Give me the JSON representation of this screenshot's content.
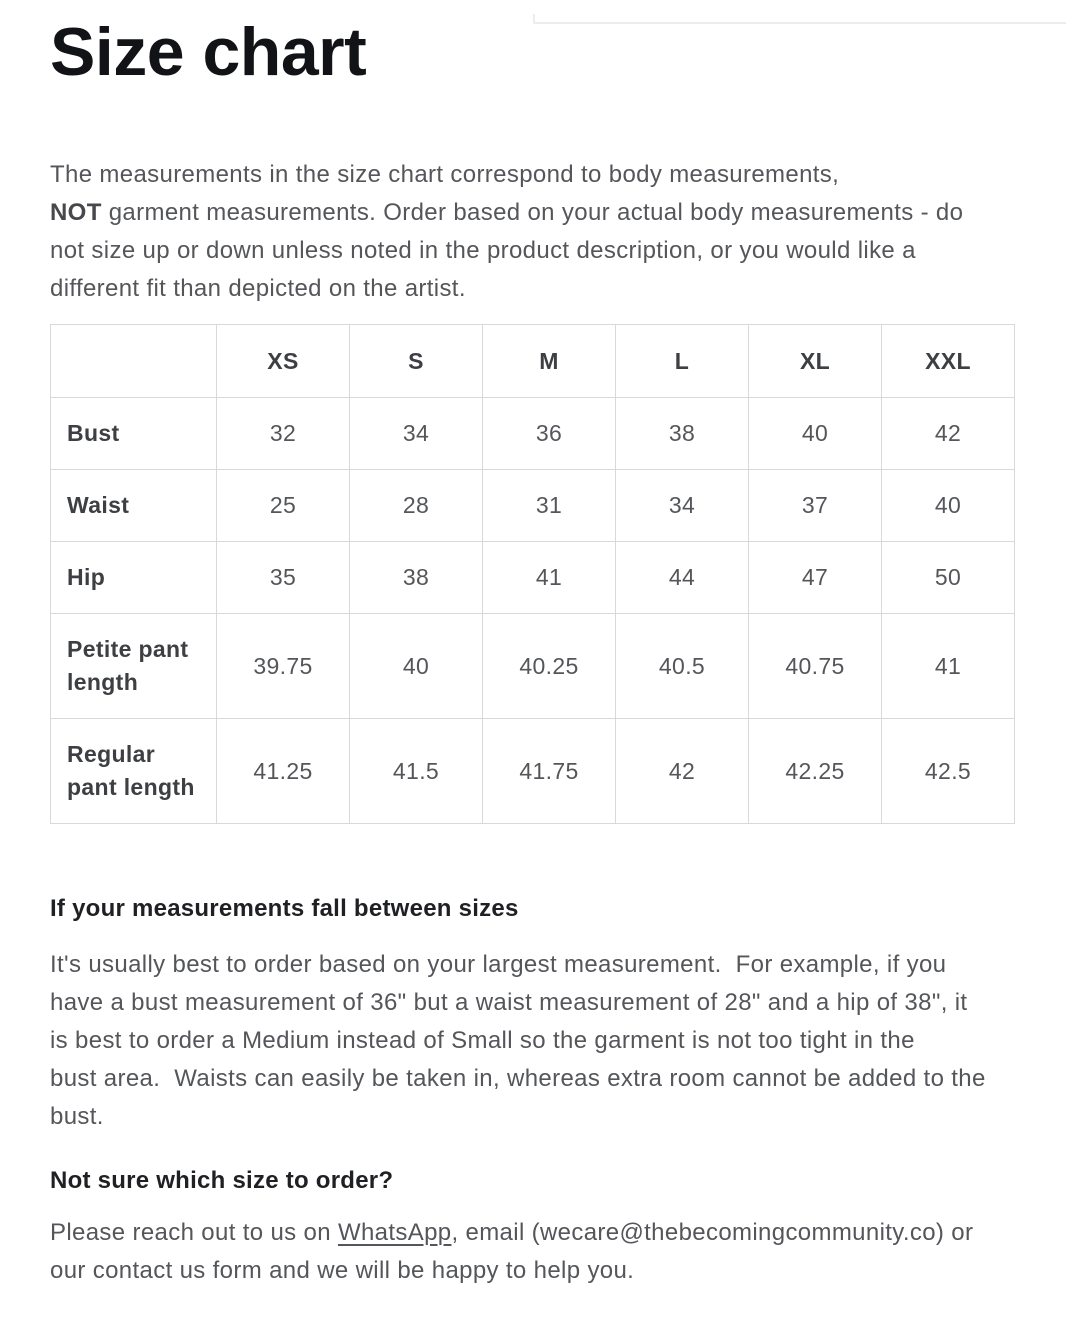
{
  "theme": {
    "title_color": "#121316",
    "body_text_color": "#54565a",
    "heading_color": "#1f2023",
    "table_border_color": "#d9d9d9",
    "background": "#ffffff"
  },
  "page": {
    "title": "Size chart"
  },
  "intro": {
    "lines": [
      [
        {
          "t": "The measurements in the size chart correspond to body measurements,"
        }
      ],
      [
        {
          "t": "NOT",
          "b": true
        },
        {
          "t": " garment measurements. Order based on your actual body measurements - do"
        }
      ],
      [
        {
          "t": "not size up or down unless noted in the product description, or you would like a"
        }
      ],
      [
        {
          "t": "different fit than depicted on the artist."
        }
      ]
    ]
  },
  "size_table": {
    "columns": [
      "",
      "XS",
      "S",
      "M",
      "L",
      "XL",
      "XXL"
    ],
    "rows": [
      {
        "label": "Bust",
        "values": [
          "32",
          "34",
          "36",
          "38",
          "40",
          "42"
        ]
      },
      {
        "label": "Waist",
        "values": [
          "25",
          "28",
          "31",
          "34",
          "37",
          "40"
        ]
      },
      {
        "label": "Hip",
        "values": [
          "35",
          "38",
          "41",
          "44",
          "47",
          "50"
        ]
      },
      {
        "label": "Petite pant length",
        "values": [
          "39.75",
          "40",
          "40.25",
          "40.5",
          "40.75",
          "41"
        ]
      },
      {
        "label": "Regular pant length",
        "values": [
          "41.25",
          "41.5",
          "41.75",
          "42",
          "42.25",
          "42.5"
        ]
      }
    ]
  },
  "between_sizes": {
    "heading": "If your measurements fall between sizes",
    "lines": [
      [
        {
          "t": "It's usually best to order based on your largest measurement.  For example, if you"
        }
      ],
      [
        {
          "t": "have a bust measurement of 36\" but a waist measurement of 28\" and a hip of 38\", it"
        }
      ],
      [
        {
          "t": "is best to order a Medium instead of Small so the garment is not too tight in the"
        }
      ],
      [
        {
          "t": "bust area.  Waists can easily be taken in, whereas extra room cannot be added to the"
        }
      ],
      [
        {
          "t": "bust."
        }
      ]
    ]
  },
  "help": {
    "heading": "Not sure which size to order?",
    "lines": [
      [
        {
          "t": "Please reach out to us on "
        },
        {
          "t": "WhatsApp",
          "link": true
        },
        {
          "t": ", email (wecare@thebecomingcommunity.co) or"
        }
      ],
      [
        {
          "t": "our contact us form and we will be happy to help you."
        }
      ]
    ]
  }
}
